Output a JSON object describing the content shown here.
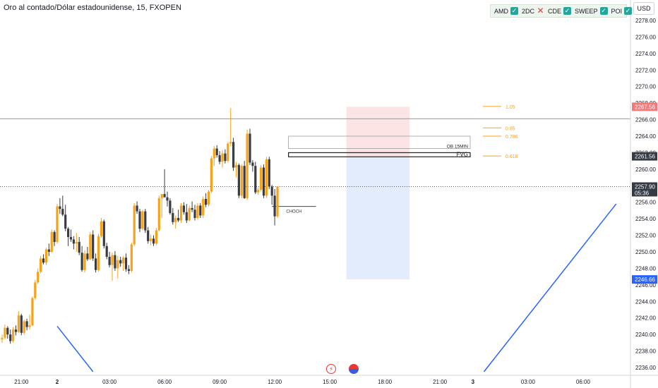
{
  "header": {
    "title": "Oro al contado/Dólar estadounidense, 15, FXOPEN",
    "currency": "USD"
  },
  "legend": [
    {
      "label": "AMD",
      "status": "check"
    },
    {
      "label": "2DC",
      "status": "cross"
    },
    {
      "label": "CDE",
      "status": "check"
    },
    {
      "label": "SWEEP",
      "status": "check"
    },
    {
      "label": "POI",
      "status": "check"
    }
  ],
  "colors": {
    "bull": "#f7a21b",
    "bear": "#3a3c43",
    "fib": "#f7a21b",
    "stop_zone": "#fde4e4",
    "target_zone": "#e3ecfc",
    "blue_line": "#2962ff",
    "current_price_badge": "#363a45",
    "stop_badge": "#f27a7a",
    "target_badge": "#2962ff"
  },
  "chart_data": {
    "type": "candlestick",
    "y_range": [
      2235.5,
      2279.5
    ],
    "y_ticks": [
      "2236.00",
      "2238.00",
      "2240.00",
      "2242.00",
      "2244.00",
      "2246.00",
      "2248.00",
      "2250.00",
      "2252.00",
      "2254.00",
      "2256.00",
      "2258.00",
      "2260.00",
      "2262.00",
      "2264.00",
      "2266.00",
      "2268.00",
      "2270.00",
      "2272.00",
      "2274.00",
      "2276.00",
      "2278.00"
    ],
    "x_labels": [
      {
        "label": "21:00",
        "bar": 7
      },
      {
        "label": "2",
        "bar": 20
      },
      {
        "label": "03:00",
        "bar": 39
      },
      {
        "label": "06:00",
        "bar": 59
      },
      {
        "label": "09:00",
        "bar": 79
      },
      {
        "label": "12:00",
        "bar": 99
      },
      {
        "label": "15:00",
        "bar": 119
      },
      {
        "label": "18:00",
        "bar": 139
      },
      {
        "label": "21:00",
        "bar": 159
      },
      {
        "label": "3",
        "bar": 171
      },
      {
        "label": "03:00",
        "bar": 191
      },
      {
        "label": "06:00",
        "bar": 211
      }
    ],
    "candles": [
      [
        2239.4,
        2240.0,
        2239.0,
        2239.6
      ],
      [
        2239.6,
        2241.2,
        2239.4,
        2240.8
      ],
      [
        2240.8,
        2241.0,
        2239.5,
        2240.0
      ],
      [
        2240.0,
        2240.6,
        2238.9,
        2239.2
      ],
      [
        2239.2,
        2240.9,
        2239.0,
        2240.6
      ],
      [
        2240.6,
        2241.1,
        2239.9,
        2240.3
      ],
      [
        2240.3,
        2242.8,
        2240.2,
        2242.3
      ],
      [
        2242.3,
        2242.5,
        2239.9,
        2240.2
      ],
      [
        2240.2,
        2241.8,
        2240.0,
        2241.6
      ],
      [
        2241.6,
        2241.9,
        2240.5,
        2240.9
      ],
      [
        2240.9,
        2242.4,
        2240.6,
        2241.1
      ],
      [
        2241.1,
        2244.6,
        2241.0,
        2244.4
      ],
      [
        2244.4,
        2246.6,
        2244.2,
        2246.3
      ],
      [
        2246.3,
        2248.0,
        2246.1,
        2247.6
      ],
      [
        2247.6,
        2249.5,
        2247.4,
        2249.2
      ],
      [
        2249.2,
        2249.7,
        2248.5,
        2248.7
      ],
      [
        2248.7,
        2250.5,
        2248.4,
        2250.3
      ],
      [
        2250.3,
        2251.0,
        2249.5,
        2250.0
      ],
      [
        2250.0,
        2252.7,
        2249.9,
        2252.4
      ],
      [
        2252.4,
        2252.6,
        2250.7,
        2251.2
      ],
      [
        2251.2,
        2255.8,
        2251.0,
        2255.5
      ],
      [
        2255.5,
        2256.5,
        2254.6,
        2255.2
      ],
      [
        2255.2,
        2256.8,
        2254.3,
        2254.5
      ],
      [
        2254.5,
        2255.7,
        2252.5,
        2252.8
      ],
      [
        2252.8,
        2253.0,
        2250.7,
        2251.8
      ],
      [
        2251.8,
        2252.7,
        2251.2,
        2251.5
      ],
      [
        2251.5,
        2251.9,
        2250.3,
        2251.0
      ],
      [
        2251.0,
        2252.3,
        2250.0,
        2251.2
      ],
      [
        2251.2,
        2251.8,
        2249.6,
        2249.9
      ],
      [
        2249.9,
        2250.7,
        2247.6,
        2247.8
      ],
      [
        2247.8,
        2250.2,
        2247.5,
        2249.8
      ],
      [
        2249.8,
        2250.6,
        2248.9,
        2249.1
      ],
      [
        2249.1,
        2252.4,
        2249.0,
        2252.1
      ],
      [
        2252.1,
        2252.6,
        2248.9,
        2249.2
      ],
      [
        2249.2,
        2249.8,
        2247.5,
        2247.8
      ],
      [
        2247.8,
        2252.2,
        2247.6,
        2251.9
      ],
      [
        2251.9,
        2254.1,
        2251.7,
        2253.7
      ],
      [
        2253.7,
        2253.9,
        2250.4,
        2250.7
      ],
      [
        2250.7,
        2251.1,
        2249.1,
        2249.4
      ],
      [
        2249.4,
        2250.0,
        2248.1,
        2248.4
      ],
      [
        2248.4,
        2249.9,
        2246.5,
        2249.6
      ],
      [
        2249.6,
        2250.1,
        2247.7,
        2248.0
      ],
      [
        2248.0,
        2249.5,
        2246.8,
        2249.0
      ],
      [
        2249.0,
        2249.4,
        2248.2,
        2248.6
      ],
      [
        2248.6,
        2249.5,
        2247.7,
        2249.3
      ],
      [
        2249.3,
        2249.8,
        2247.6,
        2247.9
      ],
      [
        2247.9,
        2248.4,
        2247.3,
        2247.7
      ],
      [
        2247.7,
        2251.1,
        2247.5,
        2250.9
      ],
      [
        2250.9,
        2255.9,
        2250.7,
        2255.6
      ],
      [
        2255.6,
        2256.1,
        2254.6,
        2254.9
      ],
      [
        2254.9,
        2255.2,
        2252.4,
        2252.8
      ],
      [
        2252.8,
        2255.1,
        2252.6,
        2254.9
      ],
      [
        2254.9,
        2255.2,
        2252.3,
        2252.6
      ],
      [
        2252.6,
        2253.0,
        2251.0,
        2251.3
      ],
      [
        2251.3,
        2252.1,
        2250.8,
        2251.6
      ],
      [
        2251.6,
        2252.0,
        2250.7,
        2251.0
      ],
      [
        2251.0,
        2252.9,
        2250.8,
        2252.6
      ],
      [
        2252.6,
        2256.8,
        2252.5,
        2256.5
      ],
      [
        2256.5,
        2256.9,
        2254.1,
        2257.0
      ],
      [
        2257.0,
        2260.0,
        2256.6,
        2256.6
      ],
      [
        2256.6,
        2257.3,
        2255.5,
        2256.2
      ],
      [
        2256.2,
        2256.5,
        2254.5,
        2254.7
      ],
      [
        2254.7,
        2255.3,
        2253.3,
        2253.6
      ],
      [
        2253.6,
        2254.4,
        2252.8,
        2254.1
      ],
      [
        2254.1,
        2255.1,
        2253.6,
        2253.8
      ],
      [
        2253.8,
        2255.9,
        2253.5,
        2255.6
      ],
      [
        2255.6,
        2256.0,
        2254.5,
        2254.8
      ],
      [
        2254.8,
        2255.8,
        2253.5,
        2253.8
      ],
      [
        2253.8,
        2255.6,
        2253.7,
        2255.3
      ],
      [
        2255.3,
        2256.1,
        2254.8,
        2255.1
      ],
      [
        2255.1,
        2255.7,
        2253.8,
        2254.1
      ],
      [
        2254.1,
        2255.9,
        2253.9,
        2255.6
      ],
      [
        2255.6,
        2255.9,
        2254.1,
        2254.4
      ],
      [
        2254.4,
        2256.7,
        2254.1,
        2256.4
      ],
      [
        2256.4,
        2257.1,
        2255.4,
        2255.7
      ],
      [
        2255.7,
        2257.5,
        2255.5,
        2257.3
      ],
      [
        2257.3,
        2261.6,
        2257.1,
        2261.3
      ],
      [
        2261.3,
        2262.8,
        2260.4,
        2262.5
      ],
      [
        2262.5,
        2262.9,
        2261.4,
        2261.7
      ],
      [
        2261.7,
        2262.2,
        2260.6,
        2260.9
      ],
      [
        2260.9,
        2262.3,
        2260.2,
        2261.9
      ],
      [
        2261.9,
        2262.4,
        2260.7,
        2261.0
      ],
      [
        2261.0,
        2263.3,
        2260.8,
        2263.1
      ],
      [
        2263.1,
        2267.4,
        2262.8,
        2263.3
      ],
      [
        2263.3,
        2263.8,
        2259.8,
        2260.2
      ],
      [
        2260.2,
        2260.9,
        2259.0,
        2260.5
      ],
      [
        2260.5,
        2260.7,
        2256.5,
        2256.8
      ],
      [
        2256.8,
        2260.6,
        2256.5,
        2260.4
      ],
      [
        2260.4,
        2261.0,
        2256.4,
        2256.5
      ],
      [
        2256.5,
        2264.8,
        2256.3,
        2264.3
      ],
      [
        2264.3,
        2264.9,
        2260.5,
        2260.8
      ],
      [
        2260.8,
        2261.1,
        2259.7,
        2260.4
      ],
      [
        2260.4,
        2260.9,
        2257.0,
        2257.2
      ],
      [
        2257.2,
        2257.8,
        2256.9,
        2257.5
      ],
      [
        2257.5,
        2260.5,
        2257.3,
        2260.2
      ],
      [
        2260.2,
        2260.6,
        2256.5,
        2256.8
      ],
      [
        2256.8,
        2261.5,
        2256.5,
        2261.2
      ],
      [
        2261.2,
        2261.5,
        2257.6,
        2257.9
      ],
      [
        2257.9,
        2258.1,
        2255.7,
        2256.8
      ],
      [
        2256.8,
        2257.6,
        2253.2,
        2254.3
      ],
      [
        2254.3,
        2257.9,
        2254.1,
        2257.9
      ]
    ],
    "horizontal_lines": [
      {
        "price": 2266.1,
        "style": "solid"
      },
      {
        "price": 2257.9,
        "style": "dotted"
      }
    ],
    "fib_levels": [
      {
        "label": "1.05",
        "price": 2267.6
      },
      {
        "label": "0.85",
        "price": 2265.0
      },
      {
        "label": "0.786",
        "price": 2264.0
      },
      {
        "label": "0.618",
        "price": 2261.6
      }
    ],
    "annotations": [
      {
        "label": "OB 15MIN",
        "type": "box",
        "top": 2264.0,
        "bottom": 2262.5,
        "bar_from": 104,
        "bar_to": 170
      },
      {
        "label": "FVG",
        "type": "box",
        "top": 2262.0,
        "bottom": 2261.5,
        "bar_from": 104,
        "bar_to": 170
      },
      {
        "label": "CHOCH",
        "type": "line",
        "price": 2255.5,
        "bar_from": 98,
        "bar_to": 114
      }
    ],
    "position": {
      "entry": 2261.56,
      "stop": 2267.56,
      "target": 2246.66,
      "bar_from": 125,
      "bar_to": 148
    },
    "trend_lines": [
      {
        "from": {
          "bar": 20,
          "price": 2241.0
        },
        "to": {
          "bar": 33,
          "price": 2235.5
        }
      },
      {
        "from": {
          "bar": 175,
          "price": 2235.5
        },
        "to": {
          "bar": 223,
          "price": 2255.8
        }
      }
    ],
    "price_badges": [
      {
        "label": "2267.56",
        "price": 2267.56,
        "kind": "stop"
      },
      {
        "label": "2261.56",
        "price": 2261.56,
        "kind": "entry"
      },
      {
        "label": "2257.90",
        "sublabel": "05:36",
        "price": 2257.9,
        "kind": "current"
      },
      {
        "label": "2246.66",
        "price": 2246.66,
        "kind": "target"
      }
    ]
  }
}
